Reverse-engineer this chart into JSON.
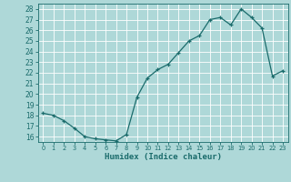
{
  "x": [
    0,
    1,
    2,
    3,
    4,
    5,
    6,
    7,
    8,
    9,
    10,
    11,
    12,
    13,
    14,
    15,
    16,
    17,
    18,
    19,
    20,
    21,
    22,
    23
  ],
  "y": [
    18.2,
    18.0,
    17.5,
    16.8,
    16.0,
    15.8,
    15.7,
    15.6,
    16.2,
    19.7,
    21.5,
    22.3,
    22.8,
    23.9,
    25.0,
    25.5,
    27.0,
    27.2,
    26.5,
    28.0,
    27.2,
    26.2,
    21.7,
    22.2
  ],
  "xlabel": "Humidex (Indice chaleur)",
  "xlim": [
    -0.5,
    23.5
  ],
  "ylim": [
    15.5,
    28.5
  ],
  "yticks": [
    16,
    17,
    18,
    19,
    20,
    21,
    22,
    23,
    24,
    25,
    26,
    27,
    28
  ],
  "xtick_labels": [
    "0",
    "1",
    "2",
    "3",
    "4",
    "5",
    "6",
    "7",
    "8",
    "9",
    "10",
    "11",
    "12",
    "13",
    "14",
    "15",
    "16",
    "17",
    "18",
    "19",
    "20",
    "21",
    "22",
    "23"
  ],
  "bg_color": "#aed8d8",
  "grid_color": "#c8e8e8",
  "line_color": "#1a6b6b",
  "marker_color": "#1a6b6b",
  "tick_color": "#1a6b6b",
  "label_color": "#1a6b6b"
}
